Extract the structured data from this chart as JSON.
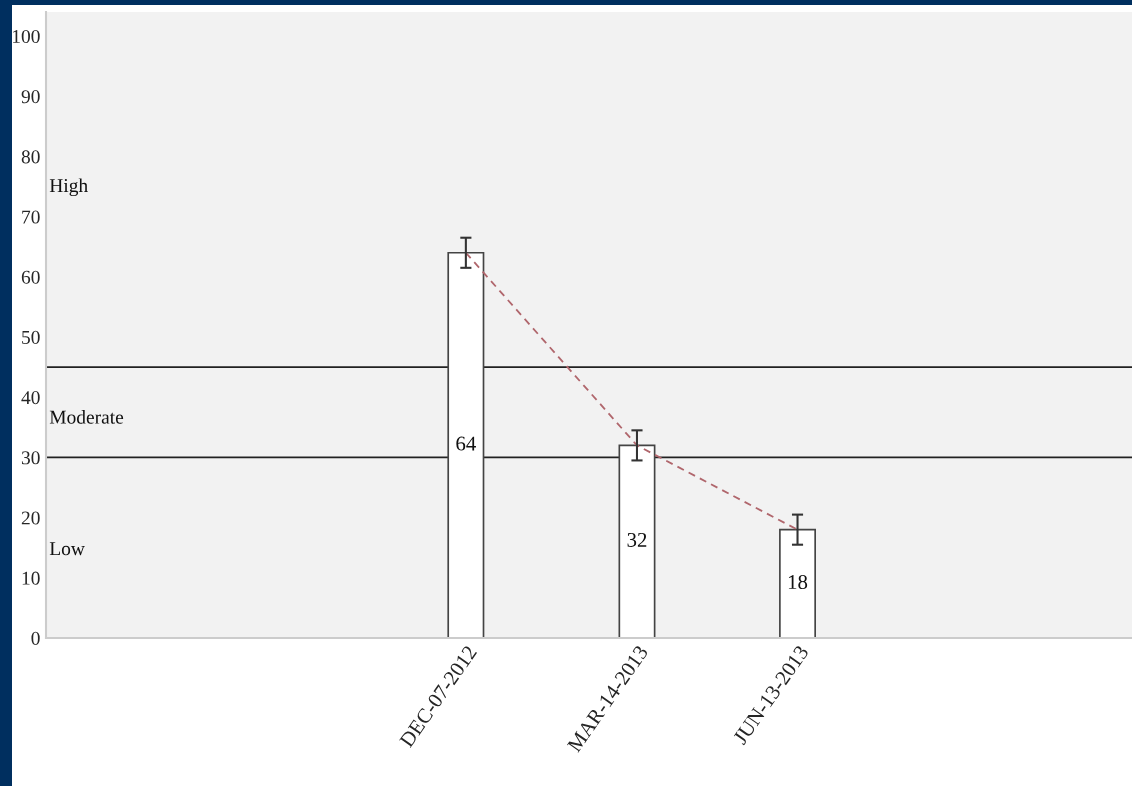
{
  "chart_data": {
    "type": "bar",
    "x": [
      "2012-12-07",
      "2013-03-14",
      "2013-06-13"
    ],
    "series": [
      {
        "color": "#ffffff",
        "values": [
          64,
          32,
          18
        ],
        "errors": [
          2.5,
          2.5,
          2.5
        ],
        "value_labels": [
          "64",
          "32",
          "18"
        ]
      },
      {
        "type": "line",
        "color": "#b0666c",
        "values": [
          64,
          32,
          18
        ],
        "line_style": "dashed"
      }
    ],
    "xlim": [
      "2012-04-13",
      "2013-12-23"
    ],
    "xticks": [
      {
        "value": "2012-12-07",
        "label": "DEC-07-2012"
      },
      {
        "value": "2013-03-14",
        "label": "MAR-14-2013"
      },
      {
        "value": "2013-06-13",
        "label": "JUN-13-2013"
      }
    ],
    "ylim": [
      0,
      104
    ],
    "yticks": [
      0,
      10,
      20,
      30,
      40,
      50,
      60,
      70,
      80,
      90,
      100
    ],
    "ref_lines": [
      {
        "axis": "y",
        "value": 45,
        "color": "#222222"
      },
      {
        "axis": "y",
        "value": 30,
        "color": "#222222"
      }
    ],
    "annotations": [
      "High",
      "Moderate",
      "Low"
    ],
    "grid": false,
    "legend": false
  }
}
